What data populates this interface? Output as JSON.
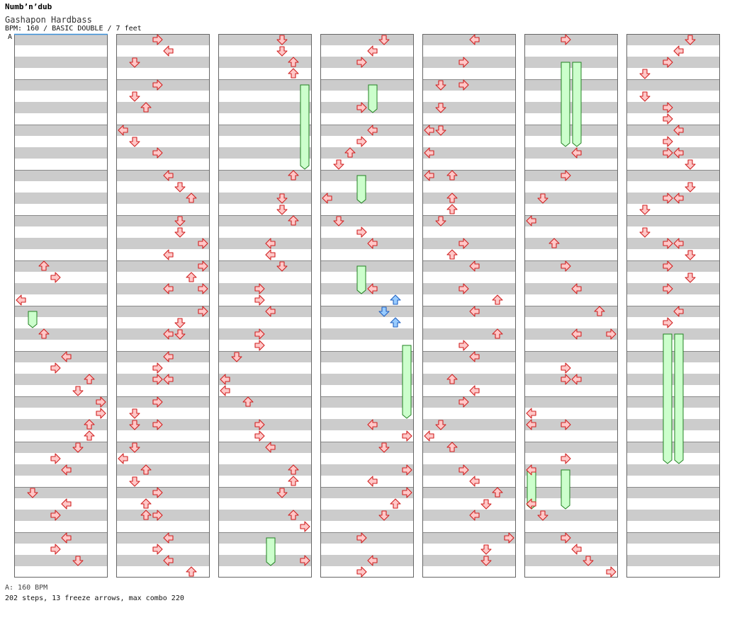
{
  "header": {
    "title": "Numb’n’dub",
    "subtitle": "Gashapon Hardbass",
    "meta": "BPM: 160 / BASIC DOUBLE / 7 feet",
    "bpm_marker": "A"
  },
  "footer": {
    "bpm_note": "A: 160 BPM",
    "stats": "202 steps, 13 freeze arrows, max combo 220"
  },
  "colors": {
    "stripe": "#cccccc",
    "border": "#666666",
    "arrow_red_fill": "#ffc8c8",
    "arrow_red_stroke": "#d02020",
    "arrow_blue_fill": "#99ccff",
    "arrow_blue_stroke": "#2060c0",
    "freeze_fill": "#ccffcc",
    "freeze_stroke": "#208020"
  },
  "chart_data": {
    "type": "step-chart",
    "columns": 7,
    "rows_per_column": 48,
    "lanes": 8,
    "lane_directions": [
      "left",
      "down",
      "up",
      "right",
      "left",
      "down",
      "up",
      "right"
    ],
    "notes": [
      {
        "c": 1,
        "r": 20,
        "l": 2
      },
      {
        "c": 1,
        "r": 21,
        "l": 3
      },
      {
        "c": 1,
        "r": 23,
        "l": 0
      },
      {
        "c": 1,
        "r": 26,
        "l": 2
      },
      {
        "c": 1,
        "r": 28,
        "l": 4
      },
      {
        "c": 1,
        "r": 29,
        "l": 3
      },
      {
        "c": 1,
        "r": 30,
        "l": 6
      },
      {
        "c": 1,
        "r": 31,
        "l": 5
      },
      {
        "c": 1,
        "r": 32,
        "l": 7
      },
      {
        "c": 1,
        "r": 33,
        "l": 7
      },
      {
        "c": 1,
        "r": 34,
        "l": 6
      },
      {
        "c": 1,
        "r": 35,
        "l": 6
      },
      {
        "c": 1,
        "r": 36,
        "l": 5
      },
      {
        "c": 1,
        "r": 37,
        "l": 3
      },
      {
        "c": 1,
        "r": 38,
        "l": 4
      },
      {
        "c": 1,
        "r": 40,
        "l": 1
      },
      {
        "c": 1,
        "r": 41,
        "l": 4
      },
      {
        "c": 1,
        "r": 42,
        "l": 3
      },
      {
        "c": 1,
        "r": 44,
        "l": 4
      },
      {
        "c": 1,
        "r": 45,
        "l": 3
      },
      {
        "c": 1,
        "r": 46,
        "l": 5
      },
      {
        "c": 2,
        "r": 0,
        "l": 3
      },
      {
        "c": 2,
        "r": 1,
        "l": 4
      },
      {
        "c": 2,
        "r": 2,
        "l": 1
      },
      {
        "c": 2,
        "r": 4,
        "l": 3
      },
      {
        "c": 2,
        "r": 5,
        "l": 1
      },
      {
        "c": 2,
        "r": 6,
        "l": 2
      },
      {
        "c": 2,
        "r": 8,
        "l": 0
      },
      {
        "c": 2,
        "r": 9,
        "l": 1
      },
      {
        "c": 2,
        "r": 10,
        "l": 3
      },
      {
        "c": 2,
        "r": 12,
        "l": 4
      },
      {
        "c": 2,
        "r": 13,
        "l": 5
      },
      {
        "c": 2,
        "r": 14,
        "l": 6
      },
      {
        "c": 2,
        "r": 16,
        "l": 5
      },
      {
        "c": 2,
        "r": 17,
        "l": 5
      },
      {
        "c": 2,
        "r": 18,
        "l": 7
      },
      {
        "c": 2,
        "r": 19,
        "l": 4
      },
      {
        "c": 2,
        "r": 20,
        "l": 7
      },
      {
        "c": 2,
        "r": 21,
        "l": 6
      },
      {
        "c": 2,
        "r": 22,
        "l": 4
      },
      {
        "c": 2,
        "r": 22,
        "l": 7
      },
      {
        "c": 2,
        "r": 24,
        "l": 7
      },
      {
        "c": 2,
        "r": 25,
        "l": 5
      },
      {
        "c": 2,
        "r": 26,
        "l": 4
      },
      {
        "c": 2,
        "r": 26,
        "l": 5
      },
      {
        "c": 2,
        "r": 28,
        "l": 4
      },
      {
        "c": 2,
        "r": 29,
        "l": 3
      },
      {
        "c": 2,
        "r": 30,
        "l": 3
      },
      {
        "c": 2,
        "r": 30,
        "l": 4
      },
      {
        "c": 2,
        "r": 32,
        "l": 3
      },
      {
        "c": 2,
        "r": 33,
        "l": 1
      },
      {
        "c": 2,
        "r": 34,
        "l": 1
      },
      {
        "c": 2,
        "r": 34,
        "l": 3
      },
      {
        "c": 2,
        "r": 36,
        "l": 1
      },
      {
        "c": 2,
        "r": 37,
        "l": 0
      },
      {
        "c": 2,
        "r": 38,
        "l": 2
      },
      {
        "c": 2,
        "r": 39,
        "l": 1
      },
      {
        "c": 2,
        "r": 40,
        "l": 3
      },
      {
        "c": 2,
        "r": 41,
        "l": 2
      },
      {
        "c": 2,
        "r": 42,
        "l": 2
      },
      {
        "c": 2,
        "r": 42,
        "l": 3
      },
      {
        "c": 2,
        "r": 44,
        "l": 4
      },
      {
        "c": 2,
        "r": 45,
        "l": 3
      },
      {
        "c": 2,
        "r": 46,
        "l": 4
      },
      {
        "c": 2,
        "r": 47,
        "l": 6
      },
      {
        "c": 3,
        "r": 0,
        "l": 5
      },
      {
        "c": 3,
        "r": 1,
        "l": 5
      },
      {
        "c": 3,
        "r": 2,
        "l": 6
      },
      {
        "c": 3,
        "r": 3,
        "l": 6
      },
      {
        "c": 3,
        "r": 12,
        "l": 6
      },
      {
        "c": 3,
        "r": 14,
        "l": 5
      },
      {
        "c": 3,
        "r": 15,
        "l": 5
      },
      {
        "c": 3,
        "r": 16,
        "l": 6
      },
      {
        "c": 3,
        "r": 18,
        "l": 4
      },
      {
        "c": 3,
        "r": 19,
        "l": 4
      },
      {
        "c": 3,
        "r": 20,
        "l": 5
      },
      {
        "c": 3,
        "r": 22,
        "l": 3
      },
      {
        "c": 3,
        "r": 23,
        "l": 3
      },
      {
        "c": 3,
        "r": 24,
        "l": 4
      },
      {
        "c": 3,
        "r": 26,
        "l": 3
      },
      {
        "c": 3,
        "r": 27,
        "l": 3
      },
      {
        "c": 3,
        "r": 28,
        "l": 1
      },
      {
        "c": 3,
        "r": 30,
        "l": 0
      },
      {
        "c": 3,
        "r": 31,
        "l": 0
      },
      {
        "c": 3,
        "r": 32,
        "l": 2
      },
      {
        "c": 3,
        "r": 34,
        "l": 3
      },
      {
        "c": 3,
        "r": 35,
        "l": 3
      },
      {
        "c": 3,
        "r": 36,
        "l": 4
      },
      {
        "c": 3,
        "r": 38,
        "l": 6
      },
      {
        "c": 3,
        "r": 39,
        "l": 6
      },
      {
        "c": 3,
        "r": 40,
        "l": 5
      },
      {
        "c": 3,
        "r": 42,
        "l": 6
      },
      {
        "c": 3,
        "r": 43,
        "l": 7
      },
      {
        "c": 3,
        "r": 46,
        "l": 7
      },
      {
        "c": 4,
        "r": 0,
        "l": 5
      },
      {
        "c": 4,
        "r": 1,
        "l": 4
      },
      {
        "c": 4,
        "r": 2,
        "l": 3
      },
      {
        "c": 4,
        "r": 6,
        "l": 3
      },
      {
        "c": 4,
        "r": 8,
        "l": 4
      },
      {
        "c": 4,
        "r": 9,
        "l": 3
      },
      {
        "c": 4,
        "r": 10,
        "l": 2
      },
      {
        "c": 4,
        "r": 11,
        "l": 1
      },
      {
        "c": 4,
        "r": 14,
        "l": 0
      },
      {
        "c": 4,
        "r": 16,
        "l": 1
      },
      {
        "c": 4,
        "r": 17,
        "l": 3
      },
      {
        "c": 4,
        "r": 18,
        "l": 4
      },
      {
        "c": 4,
        "r": 22,
        "l": 4
      },
      {
        "c": 4,
        "r": 23,
        "l": 6,
        "color": "blue"
      },
      {
        "c": 4,
        "r": 24,
        "l": 5,
        "color": "blue"
      },
      {
        "c": 4,
        "r": 25,
        "l": 6,
        "color": "blue"
      },
      {
        "c": 4,
        "r": 34,
        "l": 4
      },
      {
        "c": 4,
        "r": 35,
        "l": 7
      },
      {
        "c": 4,
        "r": 36,
        "l": 5
      },
      {
        "c": 4,
        "r": 38,
        "l": 7
      },
      {
        "c": 4,
        "r": 39,
        "l": 4
      },
      {
        "c": 4,
        "r": 40,
        "l": 7
      },
      {
        "c": 4,
        "r": 41,
        "l": 6
      },
      {
        "c": 4,
        "r": 42,
        "l": 5
      },
      {
        "c": 4,
        "r": 44,
        "l": 3
      },
      {
        "c": 4,
        "r": 46,
        "l": 4
      },
      {
        "c": 4,
        "r": 47,
        "l": 3
      },
      {
        "c": 5,
        "r": 0,
        "l": 4
      },
      {
        "c": 5,
        "r": 2,
        "l": 3
      },
      {
        "c": 5,
        "r": 4,
        "l": 1
      },
      {
        "c": 5,
        "r": 4,
        "l": 3
      },
      {
        "c": 5,
        "r": 6,
        "l": 1
      },
      {
        "c": 5,
        "r": 8,
        "l": 0
      },
      {
        "c": 5,
        "r": 8,
        "l": 1
      },
      {
        "c": 5,
        "r": 10,
        "l": 0
      },
      {
        "c": 5,
        "r": 12,
        "l": 0
      },
      {
        "c": 5,
        "r": 12,
        "l": 2
      },
      {
        "c": 5,
        "r": 14,
        "l": 2
      },
      {
        "c": 5,
        "r": 15,
        "l": 2
      },
      {
        "c": 5,
        "r": 16,
        "l": 1
      },
      {
        "c": 5,
        "r": 18,
        "l": 3
      },
      {
        "c": 5,
        "r": 19,
        "l": 2
      },
      {
        "c": 5,
        "r": 20,
        "l": 4
      },
      {
        "c": 5,
        "r": 22,
        "l": 3
      },
      {
        "c": 5,
        "r": 23,
        "l": 6
      },
      {
        "c": 5,
        "r": 24,
        "l": 4
      },
      {
        "c": 5,
        "r": 26,
        "l": 6
      },
      {
        "c": 5,
        "r": 27,
        "l": 3
      },
      {
        "c": 5,
        "r": 28,
        "l": 4
      },
      {
        "c": 5,
        "r": 30,
        "l": 2
      },
      {
        "c": 5,
        "r": 31,
        "l": 4
      },
      {
        "c": 5,
        "r": 32,
        "l": 3
      },
      {
        "c": 5,
        "r": 34,
        "l": 1
      },
      {
        "c": 5,
        "r": 35,
        "l": 0
      },
      {
        "c": 5,
        "r": 36,
        "l": 2
      },
      {
        "c": 5,
        "r": 38,
        "l": 3
      },
      {
        "c": 5,
        "r": 39,
        "l": 4
      },
      {
        "c": 5,
        "r": 40,
        "l": 6
      },
      {
        "c": 5,
        "r": 41,
        "l": 5
      },
      {
        "c": 5,
        "r": 42,
        "l": 4
      },
      {
        "c": 5,
        "r": 44,
        "l": 7
      },
      {
        "c": 5,
        "r": 45,
        "l": 5
      },
      {
        "c": 5,
        "r": 46,
        "l": 5
      },
      {
        "c": 6,
        "r": 0,
        "l": 3
      },
      {
        "c": 6,
        "r": 10,
        "l": 4
      },
      {
        "c": 6,
        "r": 12,
        "l": 3
      },
      {
        "c": 6,
        "r": 14,
        "l": 1
      },
      {
        "c": 6,
        "r": 16,
        "l": 0
      },
      {
        "c": 6,
        "r": 18,
        "l": 2
      },
      {
        "c": 6,
        "r": 20,
        "l": 3
      },
      {
        "c": 6,
        "r": 22,
        "l": 4
      },
      {
        "c": 6,
        "r": 24,
        "l": 6
      },
      {
        "c": 6,
        "r": 26,
        "l": 4
      },
      {
        "c": 6,
        "r": 26,
        "l": 7
      },
      {
        "c": 6,
        "r": 29,
        "l": 3
      },
      {
        "c": 6,
        "r": 30,
        "l": 3
      },
      {
        "c": 6,
        "r": 30,
        "l": 4
      },
      {
        "c": 6,
        "r": 33,
        "l": 0
      },
      {
        "c": 6,
        "r": 34,
        "l": 0
      },
      {
        "c": 6,
        "r": 34,
        "l": 3
      },
      {
        "c": 6,
        "r": 37,
        "l": 3
      },
      {
        "c": 6,
        "r": 38,
        "l": 0
      },
      {
        "c": 6,
        "r": 41,
        "l": 0
      },
      {
        "c": 6,
        "r": 42,
        "l": 1
      },
      {
        "c": 6,
        "r": 44,
        "l": 3
      },
      {
        "c": 6,
        "r": 45,
        "l": 4
      },
      {
        "c": 6,
        "r": 46,
        "l": 5
      },
      {
        "c": 6,
        "r": 47,
        "l": 7
      },
      {
        "c": 7,
        "r": 0,
        "l": 5
      },
      {
        "c": 7,
        "r": 1,
        "l": 4
      },
      {
        "c": 7,
        "r": 2,
        "l": 3
      },
      {
        "c": 7,
        "r": 3,
        "l": 1
      },
      {
        "c": 7,
        "r": 5,
        "l": 1
      },
      {
        "c": 7,
        "r": 6,
        "l": 3
      },
      {
        "c": 7,
        "r": 7,
        "l": 3
      },
      {
        "c": 7,
        "r": 8,
        "l": 4
      },
      {
        "c": 7,
        "r": 9,
        "l": 3
      },
      {
        "c": 7,
        "r": 10,
        "l": 3
      },
      {
        "c": 7,
        "r": 10,
        "l": 4
      },
      {
        "c": 7,
        "r": 11,
        "l": 5
      },
      {
        "c": 7,
        "r": 13,
        "l": 5
      },
      {
        "c": 7,
        "r": 14,
        "l": 3
      },
      {
        "c": 7,
        "r": 14,
        "l": 4
      },
      {
        "c": 7,
        "r": 15,
        "l": 1
      },
      {
        "c": 7,
        "r": 17,
        "l": 1
      },
      {
        "c": 7,
        "r": 18,
        "l": 3
      },
      {
        "c": 7,
        "r": 18,
        "l": 4
      },
      {
        "c": 7,
        "r": 19,
        "l": 5
      },
      {
        "c": 7,
        "r": 20,
        "l": 3
      },
      {
        "c": 7,
        "r": 21,
        "l": 5
      },
      {
        "c": 7,
        "r": 22,
        "l": 3
      },
      {
        "c": 7,
        "r": 24,
        "l": 4
      },
      {
        "c": 7,
        "r": 25,
        "l": 3
      }
    ],
    "freezes": [
      {
        "c": 1,
        "r": 24,
        "l": 1,
        "end": 25
      },
      {
        "c": 3,
        "r": 4,
        "l": 7,
        "end": 11
      },
      {
        "c": 3,
        "r": 44,
        "l": 4,
        "end": 46
      },
      {
        "c": 4,
        "r": 4,
        "l": 4,
        "end": 6
      },
      {
        "c": 4,
        "r": 12,
        "l": 3,
        "end": 14
      },
      {
        "c": 4,
        "r": 20,
        "l": 3,
        "end": 22
      },
      {
        "c": 4,
        "r": 27,
        "l": 7,
        "end": 33
      },
      {
        "c": 6,
        "r": 2,
        "l": 3,
        "end": 9
      },
      {
        "c": 6,
        "r": 2,
        "l": 4,
        "end": 9
      },
      {
        "c": 6,
        "r": 38,
        "l": 0,
        "end": 41
      },
      {
        "c": 6,
        "r": 38,
        "l": 3,
        "end": 41
      },
      {
        "c": 7,
        "r": 26,
        "l": 3,
        "end": 37
      },
      {
        "c": 7,
        "r": 26,
        "l": 4,
        "end": 37
      }
    ]
  }
}
